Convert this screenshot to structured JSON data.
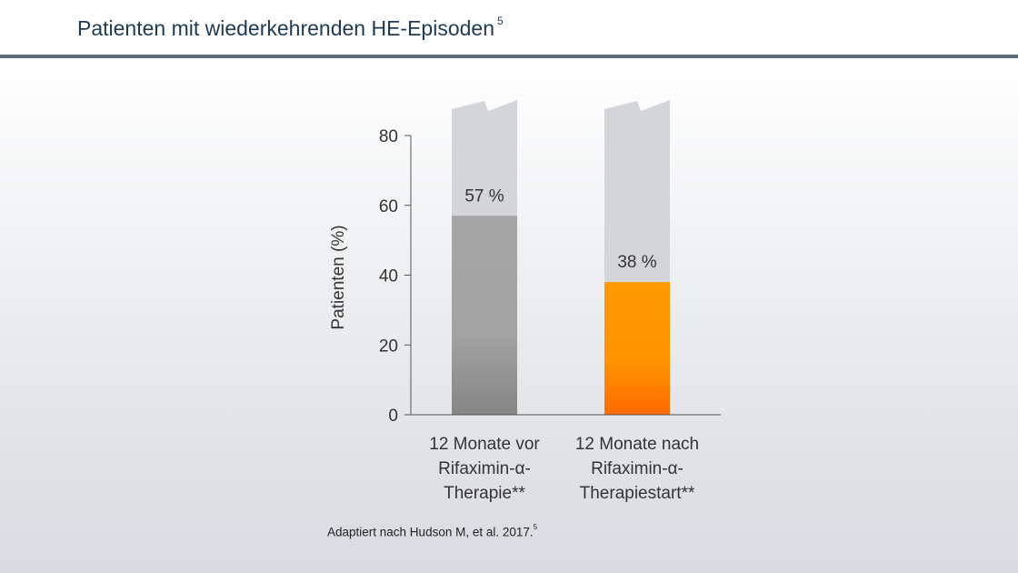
{
  "header": {
    "title": "Patienten mit wiederkehrenden HE-Episoden",
    "title_ref": "5"
  },
  "footer": {
    "source": "Adaptiert nach Hudson M, et al. 2017.",
    "source_ref": "5"
  },
  "colors": {
    "bar_before": "#a3a3a3",
    "bar_after": "#ff8c00",
    "bar_background": "#d3d5d9",
    "title_color": "#1f3a52"
  },
  "chart_data": {
    "type": "bar",
    "title": "",
    "xlabel": "",
    "ylabel": "Patienten (%)",
    "ylim": [
      0,
      80
    ],
    "yticks": [
      0,
      20,
      40,
      60,
      80
    ],
    "axis_break": true,
    "grid": false,
    "legend": "none",
    "categories": [
      [
        "12 Monate vor",
        "Rifaximin-α-",
        "Therapie**"
      ],
      [
        "12 Monate nach",
        "Rifaximin-α-",
        "Therapiestart**"
      ]
    ],
    "values": [
      57,
      38
    ],
    "value_labels": [
      "57 %",
      "38 %"
    ]
  }
}
